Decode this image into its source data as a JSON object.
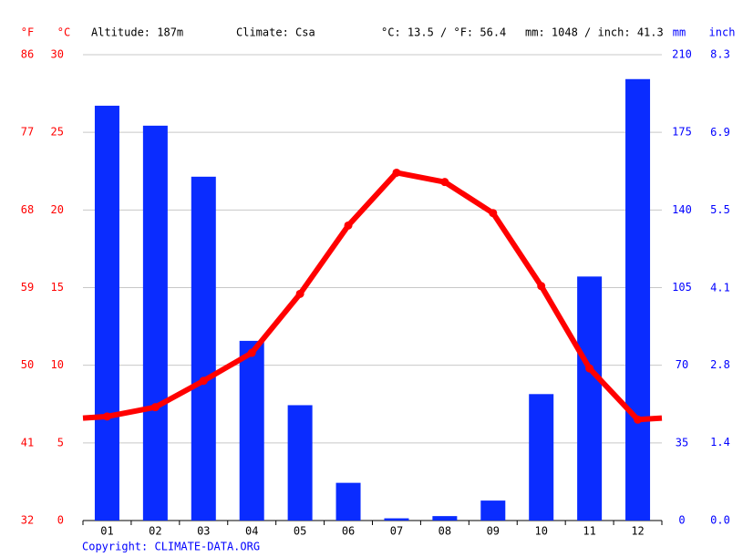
{
  "chart_data": {
    "type": "bar",
    "info": [
      "Altitude: 187m",
      "Climate: Csa",
      "°C: 13.5 / °F: 56.4",
      "mm: 1048 / inch: 41.3"
    ],
    "unit_labels": {
      "f": "°F",
      "c": "°C",
      "mm": "mm",
      "inch": "inch"
    },
    "copyright": "Copyright: CLIMATE-DATA.ORG",
    "categories": [
      "01",
      "02",
      "03",
      "04",
      "05",
      "06",
      "07",
      "08",
      "09",
      "10",
      "11",
      "12"
    ],
    "series": [
      {
        "type": "bar",
        "axis": "y2",
        "color": "#0a2cff",
        "values": [
          187,
          178,
          155,
          81,
          52,
          17,
          1,
          2,
          9,
          57,
          110,
          199
        ]
      },
      {
        "type": "line",
        "color": "#ff0000",
        "values": [
          6.7,
          7.3,
          9.0,
          10.8,
          14.6,
          19.0,
          22.4,
          21.8,
          19.8,
          15.1,
          9.8,
          6.5
        ]
      }
    ],
    "ylim": [
      0,
      30
    ],
    "yticks": [
      0,
      5,
      10,
      15,
      20,
      25,
      30
    ],
    "yflim": [
      32,
      86
    ],
    "yfticks": [
      32,
      41,
      50,
      59,
      68,
      77,
      86
    ],
    "y2lim": [
      0,
      210
    ],
    "y2ticks": [
      0,
      35,
      70,
      105,
      140,
      175,
      210
    ],
    "y3lim": [
      0,
      8.27
    ],
    "y3ticks": [
      {
        "value": 0,
        "label": "0.0"
      },
      {
        "value": 1.38,
        "label": "1.4"
      },
      {
        "value": 2.76,
        "label": "2.8"
      },
      {
        "value": 4.13,
        "label": "4.1"
      },
      {
        "value": 5.51,
        "label": "5.5"
      },
      {
        "value": 6.89,
        "label": "6.9"
      },
      {
        "value": 8.27,
        "label": "8.3"
      }
    ],
    "grid": true
  }
}
